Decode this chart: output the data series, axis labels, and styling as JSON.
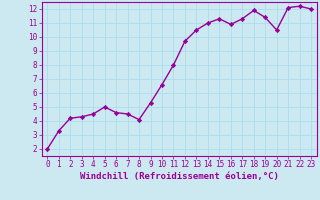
{
  "x": [
    0,
    1,
    2,
    3,
    4,
    5,
    6,
    7,
    8,
    9,
    10,
    11,
    12,
    13,
    14,
    15,
    16,
    17,
    18,
    19,
    20,
    21,
    22,
    23
  ],
  "y": [
    2.0,
    3.3,
    4.2,
    4.3,
    4.5,
    5.0,
    4.6,
    4.5,
    4.1,
    5.3,
    6.6,
    8.0,
    9.7,
    10.5,
    11.0,
    11.3,
    10.9,
    11.3,
    11.9,
    11.4,
    10.5,
    12.1,
    12.2,
    12.0
  ],
  "line_color": "#990099",
  "marker": "D",
  "marker_size": 2.2,
  "bg_color": "#cce8f0",
  "grid_color": "#aaddee",
  "xlabel": "Windchill (Refroidissement éolien,°C)",
  "xlabel_color": "#990099",
  "tick_color": "#990099",
  "spine_color": "#990099",
  "xlim_min": -0.5,
  "xlim_max": 23.5,
  "ylim_min": 1.5,
  "ylim_max": 12.5,
  "yticks": [
    2,
    3,
    4,
    5,
    6,
    7,
    8,
    9,
    10,
    11,
    12
  ],
  "xticks": [
    0,
    1,
    2,
    3,
    4,
    5,
    6,
    7,
    8,
    9,
    10,
    11,
    12,
    13,
    14,
    15,
    16,
    17,
    18,
    19,
    20,
    21,
    22,
    23
  ],
  "tick_fontsize": 5.5,
  "xlabel_fontsize": 6.5,
  "linewidth": 1.0
}
